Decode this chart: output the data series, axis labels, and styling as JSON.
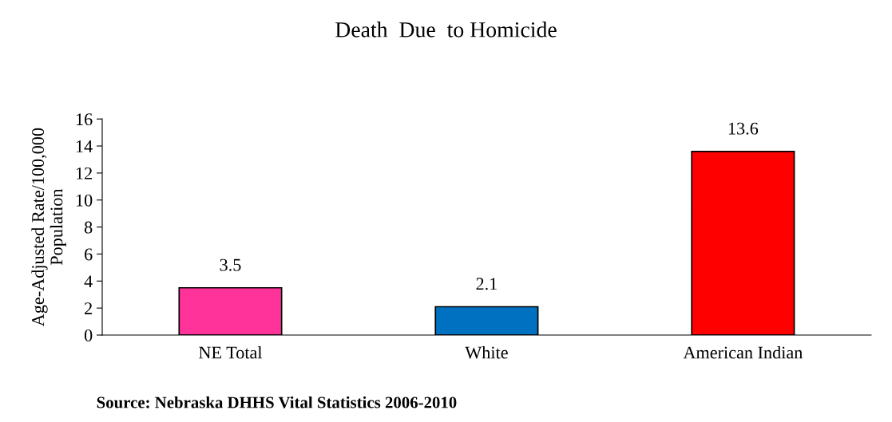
{
  "chart_data": {
    "type": "bar",
    "title": "Death  Due  to Homicide",
    "ylabel": "Age-Adjusted Rate/100,000\nPopulation",
    "categories": [
      "NE Total",
      "White",
      "American Indian"
    ],
    "values": [
      3.5,
      2.1,
      13.6
    ],
    "colors": [
      "#ff3399",
      "#0070c0",
      "#ff0000"
    ],
    "ylim": [
      0,
      16
    ],
    "yticks": [
      0,
      2,
      4,
      6,
      8,
      10,
      12,
      14,
      16
    ],
    "data_labels": true,
    "grid": false,
    "legend": false,
    "annotations": [
      "Source: Nebraska DHHS Vital Statistics 2006-2010"
    ]
  }
}
